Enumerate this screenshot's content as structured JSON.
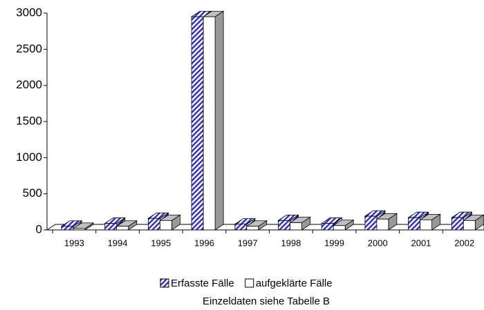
{
  "chart_data": {
    "type": "bar3d",
    "categories": [
      "1993",
      "1994",
      "1995",
      "1996",
      "1997",
      "1998",
      "1999",
      "2000",
      "2001",
      "2002"
    ],
    "series": [
      {
        "name": "Erfasste Fälle",
        "color": "#3333cc",
        "pattern": "hatch",
        "values": [
          50,
          90,
          160,
          2950,
          80,
          130,
          90,
          190,
          170,
          170
        ]
      },
      {
        "name": "aufgeklärte Fälle",
        "color": "#ffffff",
        "values": [
          20,
          50,
          130,
          2950,
          50,
          100,
          60,
          150,
          140,
          130
        ]
      }
    ],
    "ylim": [
      0,
      3000
    ],
    "yticks": [
      0,
      500,
      1000,
      1500,
      2000,
      2500,
      3000
    ],
    "legend": "bottom",
    "note": "Einzeldaten siehe Tabelle B"
  }
}
